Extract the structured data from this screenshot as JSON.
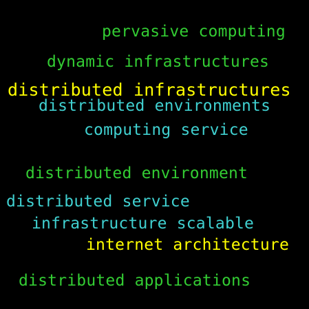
{
  "words": [
    {
      "text": "pervasive computing",
      "color": "#33cc33"
    },
    {
      "text": "dynamic infrastructures",
      "color": "#33cc33"
    },
    {
      "text": "distributed infrastructures",
      "color": "#ffff00"
    },
    {
      "text": "distributed environments",
      "color": "#40d0d0"
    },
    {
      "text": "computing service",
      "color": "#40d0d0"
    },
    {
      "text": "distributed environment",
      "color": "#33cc33"
    },
    {
      "text": "distributed service",
      "color": "#40d0d0"
    },
    {
      "text": "infrastructure scalable",
      "color": "#40d0d0"
    },
    {
      "text": "internet architecture",
      "color": "#ffff00"
    },
    {
      "text": "distributed applications",
      "color": "#33cc33"
    }
  ]
}
